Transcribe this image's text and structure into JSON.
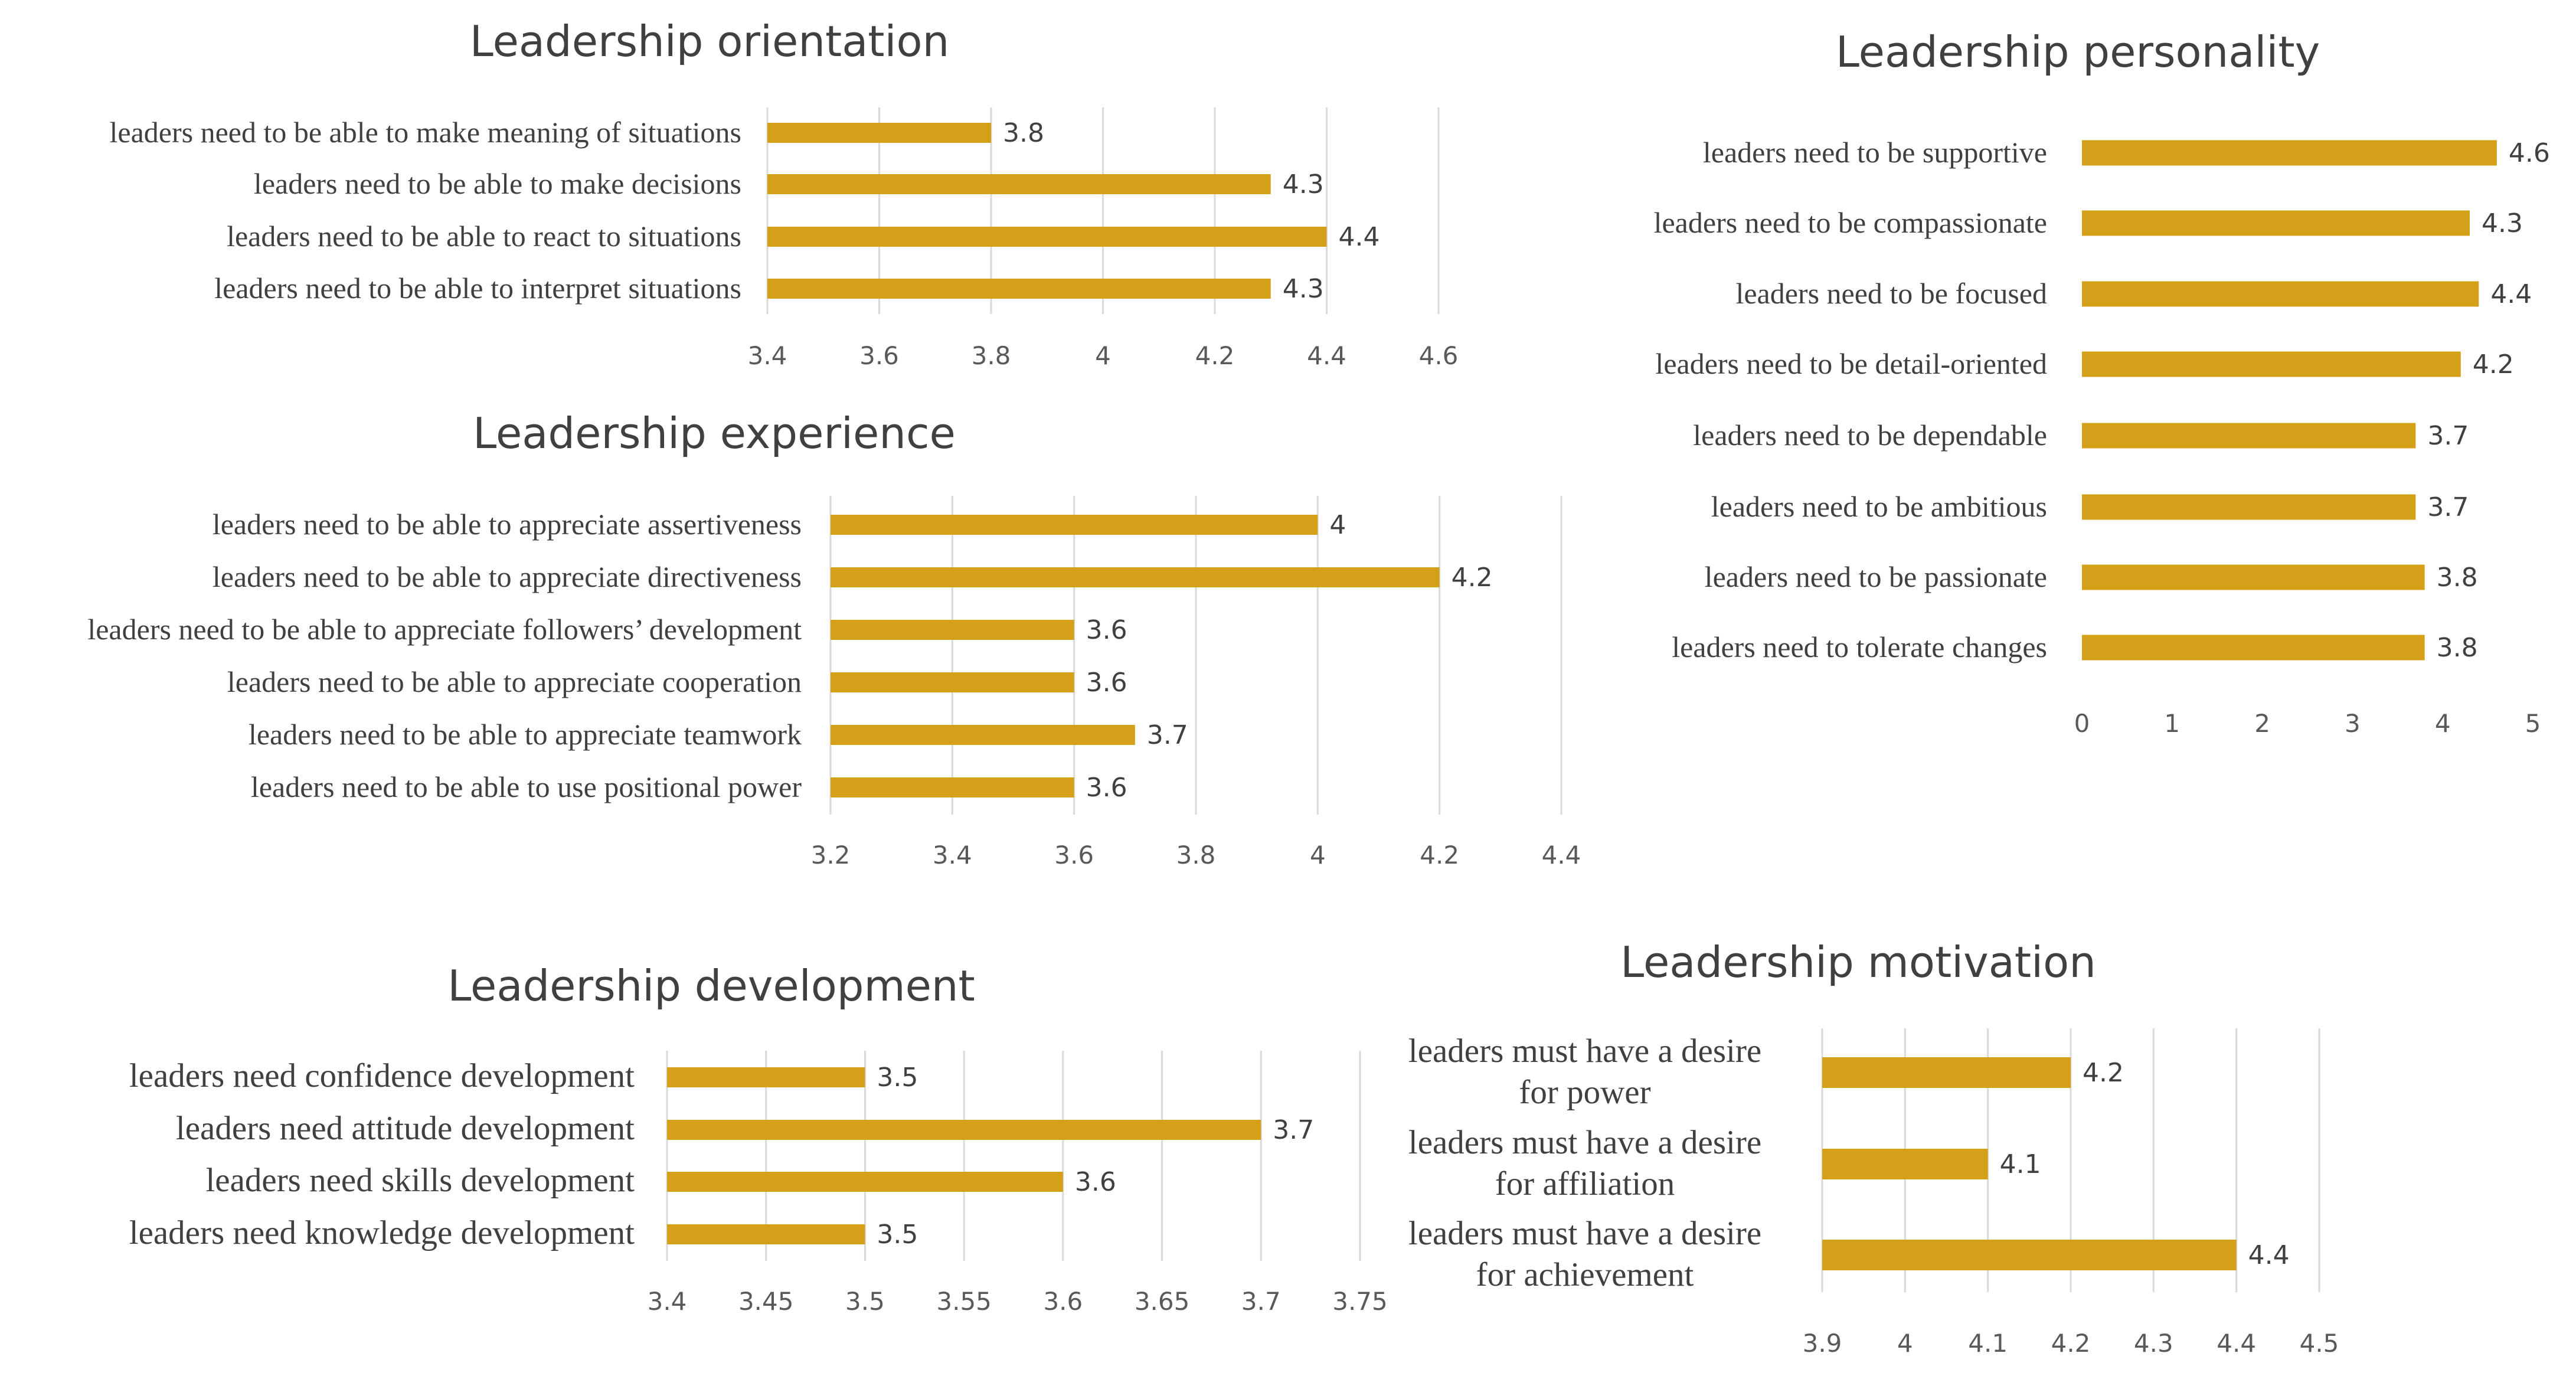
{
  "colors": {
    "bar": "#D4A017",
    "grid": "#D9D9D9",
    "text": "#404040"
  },
  "chart_data": [
    {
      "type": "bar",
      "orientation": "horizontal",
      "title": "Leadership orientation",
      "categories": [
        "leaders need to be able to make meaning of situations",
        "leaders need to be able to make decisions",
        "leaders need to be able to react to situations",
        "leaders need to be able to interpret situations"
      ],
      "values": [
        3.8,
        4.3,
        4.4,
        4.3
      ],
      "value_labels": [
        "3.8",
        "4.3",
        "4.4",
        "4.3"
      ],
      "xlim": [
        3.4,
        4.6
      ],
      "ticks": [
        "3.4",
        "3.6",
        "3.8",
        "4",
        "4.2",
        "4.4",
        "4.6"
      ],
      "grid": true
    },
    {
      "type": "bar",
      "orientation": "horizontal",
      "title": "Leadership personality",
      "categories": [
        "leaders need to be supportive",
        "leaders need to be compassionate",
        "leaders need to be focused",
        "leaders need to be detail-oriented",
        "leaders need to be dependable",
        "leaders need to be ambitious",
        "leaders need to be passionate",
        "leaders need to tolerate changes"
      ],
      "values": [
        4.6,
        4.3,
        4.4,
        4.2,
        3.7,
        3.7,
        3.8,
        3.8
      ],
      "value_labels": [
        "4.6",
        "4.3",
        "4.4",
        "4.2",
        "3.7",
        "3.7",
        "3.8",
        "3.8"
      ],
      "xlim": [
        0,
        5
      ],
      "ticks": [
        "0",
        "1",
        "2",
        "3",
        "4",
        "5"
      ],
      "grid": false
    },
    {
      "type": "bar",
      "orientation": "horizontal",
      "title": "Leadership experience",
      "categories": [
        "leaders need to be able to appreciate assertiveness",
        "leaders need to be able to appreciate directiveness",
        "leaders need to be able to appreciate followers’ development",
        "leaders need to be able to appreciate cooperation",
        "leaders need to be able to appreciate teamwork",
        "leaders need to be able to use positional power"
      ],
      "values": [
        4.0,
        4.2,
        3.6,
        3.6,
        3.7,
        3.6
      ],
      "value_labels": [
        "4",
        "4.2",
        "3.6",
        "3.6",
        "3.7",
        "3.6"
      ],
      "xlim": [
        3.2,
        4.4
      ],
      "ticks": [
        "3.2",
        "3.4",
        "3.6",
        "3.8",
        "4",
        "4.2",
        "4.4"
      ],
      "grid": true
    },
    {
      "type": "bar",
      "orientation": "horizontal",
      "title": "Leadership development",
      "categories": [
        "leaders need confidence development",
        "leaders need attitude development",
        "leaders need skills development",
        "leaders need knowledge development"
      ],
      "values": [
        3.5,
        3.7,
        3.6,
        3.5
      ],
      "value_labels": [
        "3.5",
        "3.7",
        "3.6",
        "3.5"
      ],
      "xlim": [
        3.4,
        3.75
      ],
      "ticks": [
        "3.4",
        "3.45",
        "3.5",
        "3.55",
        "3.6",
        "3.65",
        "3.7",
        "3.75"
      ],
      "grid": true
    },
    {
      "type": "bar",
      "orientation": "horizontal",
      "title": "Leadership motivation",
      "categories": [
        [
          "leaders must have a desire",
          "for power"
        ],
        [
          "leaders must have a desire",
          "for affiliation"
        ],
        [
          "leaders must have a desire",
          "for achievement"
        ]
      ],
      "values": [
        4.2,
        4.1,
        4.4
      ],
      "value_labels": [
        "4.2",
        "4.1",
        "4.4"
      ],
      "xlim": [
        3.9,
        4.5
      ],
      "ticks": [
        "3.9",
        "4",
        "4.1",
        "4.2",
        "4.3",
        "4.4",
        "4.5"
      ],
      "grid": true
    }
  ]
}
